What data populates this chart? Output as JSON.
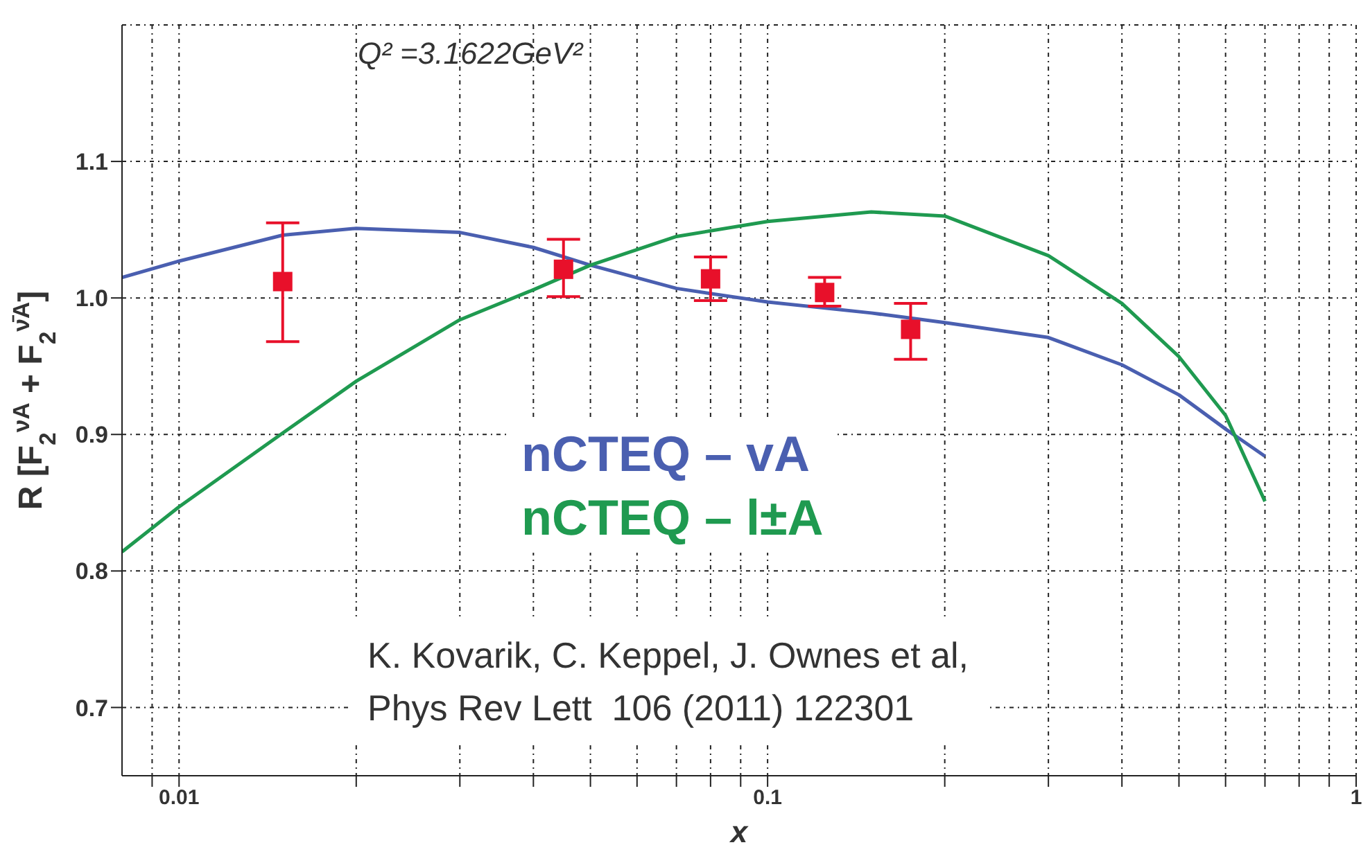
{
  "chart_data": {
    "type": "line",
    "xlabel": "x",
    "ylabel": "R [F$_{2}$$^{νA}$ + F$_{2}$$^{ν̄A}$]",
    "log": "x",
    "grid": true,
    "legend": "center",
    "annotations": [
      "Q² =3.1622GeV²",
      "K. Kovarik, C. Keppel, J. Ownes et al,",
      "Phys Rev Lett  106 (2011) 122301"
    ],
    "xlim": [
      0.008,
      1
    ],
    "ylim": [
      0.65,
      1.2
    ],
    "xticks": [
      {
        "value": 0.009,
        "label": null
      },
      0.01,
      {
        "value": 0.02,
        "label": null
      },
      {
        "value": 0.03,
        "label": null
      },
      {
        "value": 0.04,
        "label": null
      },
      {
        "value": 0.05,
        "label": null
      },
      {
        "value": 0.06,
        "label": null
      },
      {
        "value": 0.07,
        "label": null
      },
      {
        "value": 0.08,
        "label": null
      },
      {
        "value": 0.09,
        "label": null
      },
      0.1,
      {
        "value": 0.2,
        "label": null
      },
      {
        "value": 0.3,
        "label": null
      },
      {
        "value": 0.4,
        "label": null
      },
      {
        "value": 0.5,
        "label": null
      },
      {
        "value": 0.6,
        "label": null
      },
      {
        "value": 0.7,
        "label": null
      },
      {
        "value": 0.8,
        "label": null
      },
      {
        "value": 0.9,
        "label": null
      },
      1
    ],
    "yticks": [
      0.7,
      0.8,
      0.9,
      {
        "value": 1.0,
        "label": "1.0"
      },
      1.1
    ],
    "series": [
      {
        "name": "nCTEQ – vA",
        "color": "#4a5fb0",
        "marker": "none",
        "x": [
          0.008,
          0.01,
          0.015,
          0.02,
          0.03,
          0.04,
          0.05,
          0.07,
          0.1,
          0.15,
          0.2,
          0.3,
          0.4,
          0.5,
          0.6,
          0.7
        ],
        "values": [
          1.015,
          1.027,
          1.046,
          1.051,
          1.048,
          1.037,
          1.024,
          1.007,
          0.997,
          0.989,
          0.982,
          0.971,
          0.951,
          0.929,
          0.904,
          0.884
        ]
      },
      {
        "name": "nCTEQ – l±A",
        "color": "#1f9a50",
        "marker": "none",
        "x": [
          0.008,
          0.01,
          0.015,
          0.02,
          0.03,
          0.04,
          0.05,
          0.07,
          0.1,
          0.15,
          0.2,
          0.3,
          0.4,
          0.5,
          0.6,
          0.7
        ],
        "values": [
          0.814,
          0.847,
          0.901,
          0.939,
          0.984,
          1.006,
          1.024,
          1.045,
          1.056,
          1.063,
          1.06,
          1.031,
          0.996,
          0.957,
          0.914,
          0.851
        ]
      },
      {
        "color": "#e8102a",
        "type": "scatter",
        "marker": "square",
        "x": [
          0.015,
          0.045,
          0.08,
          0.125,
          0.175
        ],
        "values": [
          1.012,
          1.021,
          1.014,
          1.004,
          0.977
        ],
        "errors": [
          [
            0.968,
            1.055
          ],
          [
            1.001,
            1.043
          ],
          [
            0.998,
            1.03
          ],
          [
            0.994,
            1.015
          ],
          [
            0.955,
            0.996
          ]
        ]
      }
    ]
  }
}
